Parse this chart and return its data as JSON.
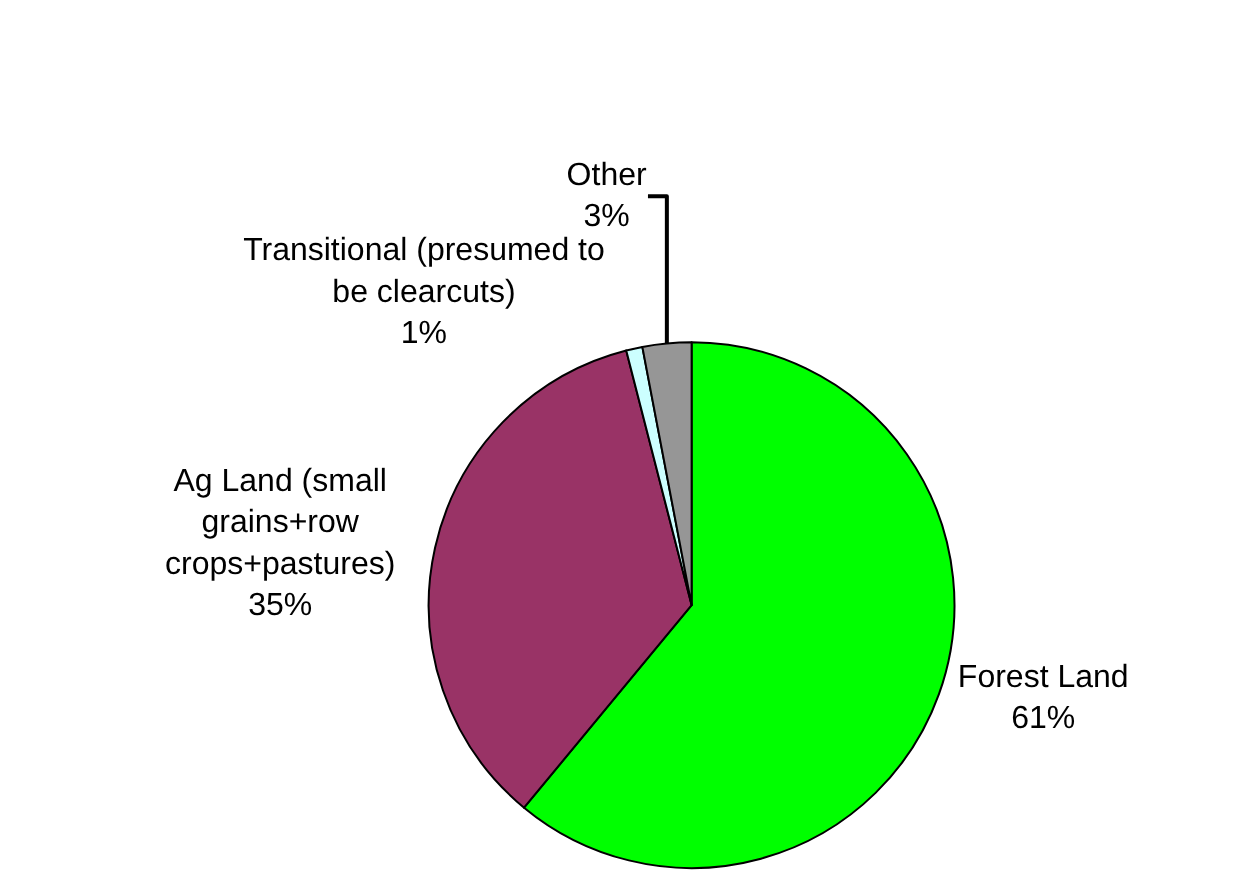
{
  "chart_data": {
    "type": "pie",
    "categories": [
      "Forest Land",
      "Ag Land (small grains+row crops+pastures)",
      "Transitional (presumed to be clearcuts)",
      "Other"
    ],
    "values": [
      61,
      35,
      1,
      3
    ],
    "value_labels": [
      "61%",
      "35%",
      "1%",
      "3%"
    ],
    "colors": [
      "#00ff00",
      "#993366",
      "#ccffff",
      "#969696"
    ],
    "legend": false
  }
}
